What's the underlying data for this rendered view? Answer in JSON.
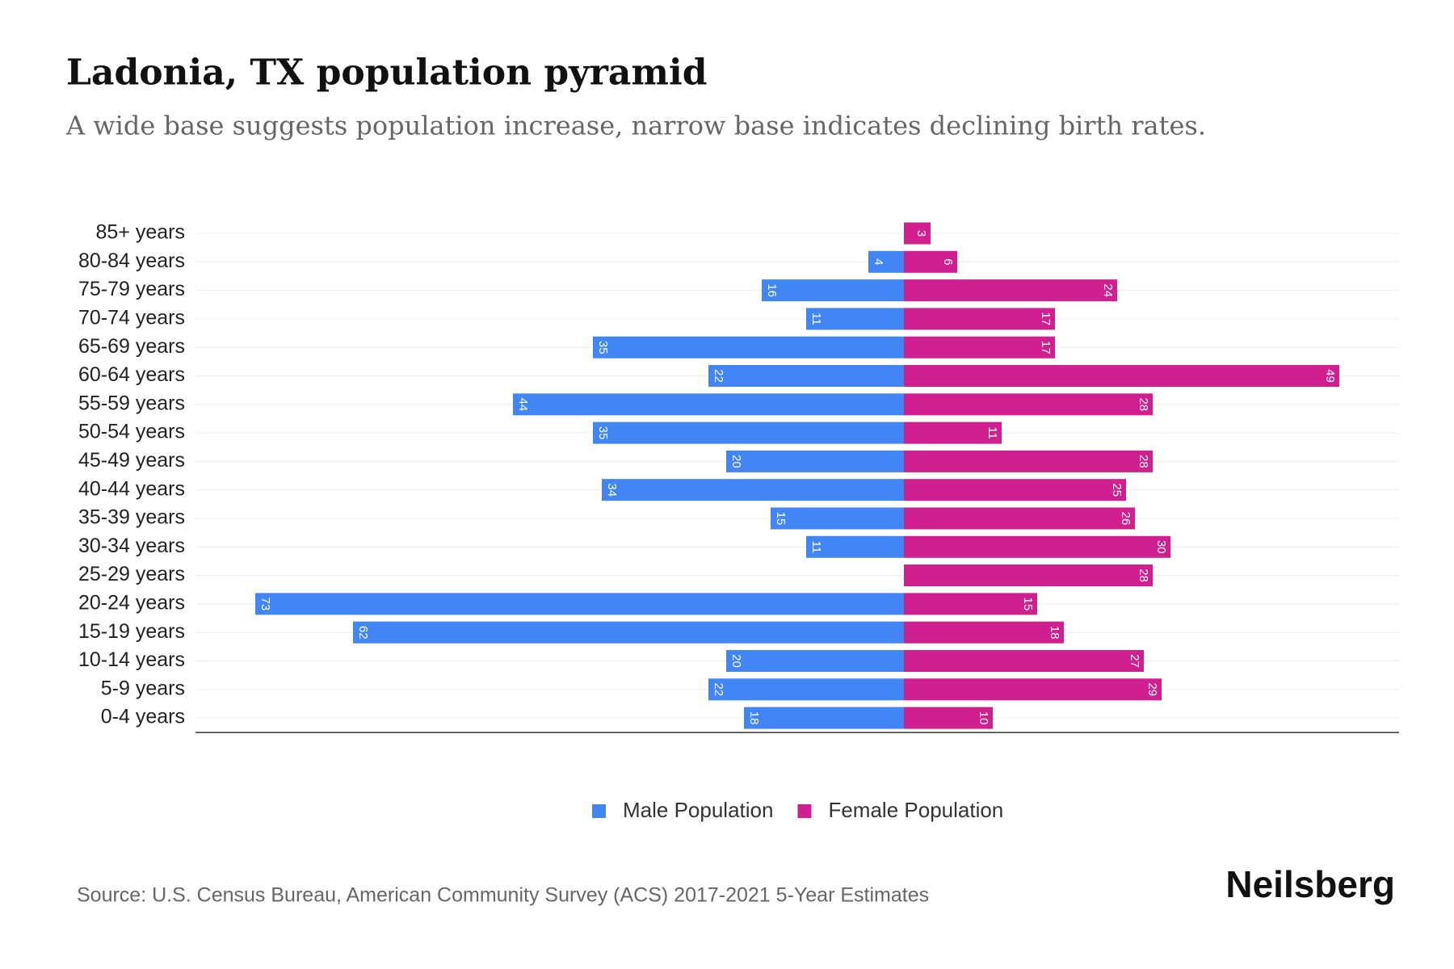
{
  "chart_data": {
    "type": "pyramid",
    "title": "Ladonia, TX population pyramid",
    "subtitle": "A wide base suggests population increase, narrow base indicates declining birth rates.",
    "categories": [
      "85+ years",
      "80-84 years",
      "75-79 years",
      "70-74 years",
      "65-69 years",
      "60-64 years",
      "55-59 years",
      "50-54 years",
      "45-49 years",
      "40-44 years",
      "35-39 years",
      "30-34 years",
      "25-29 years",
      "20-24 years",
      "15-19 years",
      "10-14 years",
      "5-9 years",
      "0-4 years"
    ],
    "series": [
      {
        "name": "Male Population",
        "color": "#4285f4",
        "values": [
          null,
          4,
          16,
          11,
          35,
          22,
          44,
          35,
          20,
          34,
          15,
          11,
          null,
          73,
          62,
          20,
          22,
          18
        ]
      },
      {
        "name": "Female Population",
        "color": "#d02090",
        "values": [
          3,
          6,
          24,
          17,
          17,
          49,
          28,
          11,
          28,
          25,
          26,
          30,
          28,
          15,
          18,
          27,
          29,
          10
        ]
      }
    ],
    "grid": true,
    "legend": "bottom",
    "source": "Source: U.S. Census Bureau, American Community Survey (ACS) 2017-2021 5-Year Estimates",
    "brand": "Neilsberg"
  }
}
